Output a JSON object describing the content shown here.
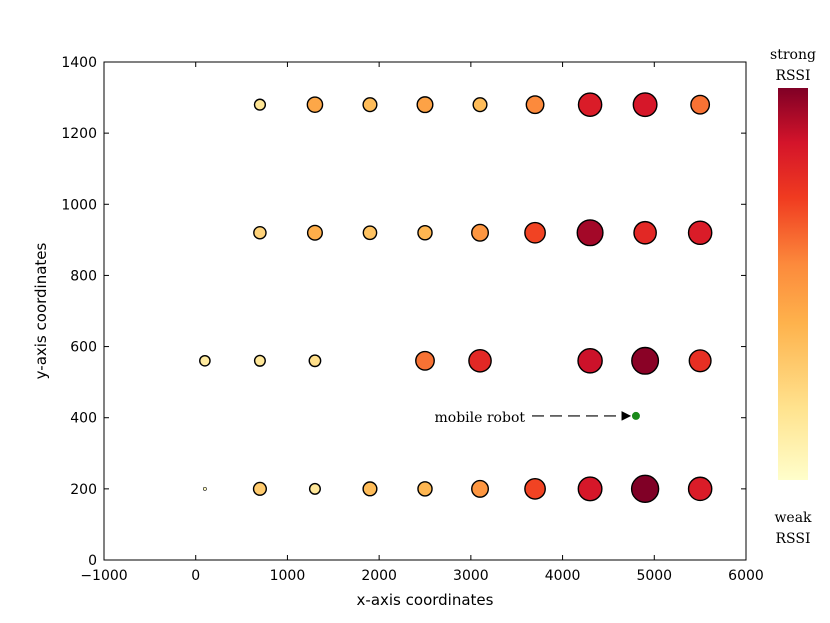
{
  "chart_data": {
    "type": "scatter",
    "title": "",
    "xlabel": "x-axis coordinates",
    "ylabel": "y-axis coordinates",
    "xlim": [
      -1000,
      6000
    ],
    "ylim": [
      0,
      1400
    ],
    "xticks": [
      -1000,
      0,
      1000,
      2000,
      3000,
      4000,
      5000,
      6000
    ],
    "yticks": [
      0,
      200,
      400,
      600,
      800,
      1000,
      1200,
      1400
    ],
    "xtick_labels": [
      "−1000",
      "0",
      "1000",
      "2000",
      "3000",
      "4000",
      "5000",
      "6000"
    ],
    "ytick_labels": [
      "0",
      "200",
      "400",
      "600",
      "800",
      "1000",
      "1200",
      "1400"
    ],
    "grid": false,
    "rssi_scale": "0 = weak, 1 = strong",
    "points": [
      {
        "x": 700,
        "y": 1280,
        "rssi": 0.15
      },
      {
        "x": 1300,
        "y": 1280,
        "rssi": 0.38
      },
      {
        "x": 1900,
        "y": 1280,
        "rssi": 0.3
      },
      {
        "x": 2500,
        "y": 1280,
        "rssi": 0.4
      },
      {
        "x": 3100,
        "y": 1280,
        "rssi": 0.3
      },
      {
        "x": 3700,
        "y": 1280,
        "rssi": 0.5
      },
      {
        "x": 4300,
        "y": 1280,
        "rssi": 0.8
      },
      {
        "x": 4900,
        "y": 1280,
        "rssi": 0.82
      },
      {
        "x": 5500,
        "y": 1280,
        "rssi": 0.55
      },
      {
        "x": 700,
        "y": 920,
        "rssi": 0.22
      },
      {
        "x": 1300,
        "y": 920,
        "rssi": 0.35
      },
      {
        "x": 1900,
        "y": 920,
        "rssi": 0.28
      },
      {
        "x": 2500,
        "y": 920,
        "rssi": 0.32
      },
      {
        "x": 3100,
        "y": 920,
        "rssi": 0.45
      },
      {
        "x": 3700,
        "y": 920,
        "rssi": 0.65
      },
      {
        "x": 4300,
        "y": 920,
        "rssi": 0.93
      },
      {
        "x": 4900,
        "y": 920,
        "rssi": 0.75
      },
      {
        "x": 5500,
        "y": 920,
        "rssi": 0.8
      },
      {
        "x": 100,
        "y": 560,
        "rssi": 0.12
      },
      {
        "x": 700,
        "y": 560,
        "rssi": 0.14
      },
      {
        "x": 1300,
        "y": 560,
        "rssi": 0.18
      },
      {
        "x": 2500,
        "y": 560,
        "rssi": 0.55
      },
      {
        "x": 3100,
        "y": 560,
        "rssi": 0.75
      },
      {
        "x": 4300,
        "y": 560,
        "rssi": 0.85
      },
      {
        "x": 4900,
        "y": 560,
        "rssi": 0.98
      },
      {
        "x": 5500,
        "y": 560,
        "rssi": 0.72
      },
      {
        "x": 100,
        "y": 200,
        "rssi": 0.02
      },
      {
        "x": 700,
        "y": 200,
        "rssi": 0.25
      },
      {
        "x": 1300,
        "y": 200,
        "rssi": 0.14
      },
      {
        "x": 1900,
        "y": 200,
        "rssi": 0.3
      },
      {
        "x": 2500,
        "y": 200,
        "rssi": 0.32
      },
      {
        "x": 3100,
        "y": 200,
        "rssi": 0.45
      },
      {
        "x": 3700,
        "y": 200,
        "rssi": 0.65
      },
      {
        "x": 4300,
        "y": 200,
        "rssi": 0.82
      },
      {
        "x": 4900,
        "y": 200,
        "rssi": 1.0
      },
      {
        "x": 5500,
        "y": 200,
        "rssi": 0.8
      }
    ],
    "robot": {
      "x": 4800,
      "y": 405,
      "label": "mobile robot",
      "color": "#1a8a1a"
    },
    "colorbar": {
      "top_label_line1": "strong",
      "top_label_line2": "RSSI",
      "bottom_label_line1": "weak",
      "bottom_label_line2": "RSSI",
      "colors": [
        "#fffecb",
        "#ffe38f",
        "#feb24c",
        "#fc8a3c",
        "#f03b20",
        "#d4142a",
        "#800026"
      ]
    }
  }
}
